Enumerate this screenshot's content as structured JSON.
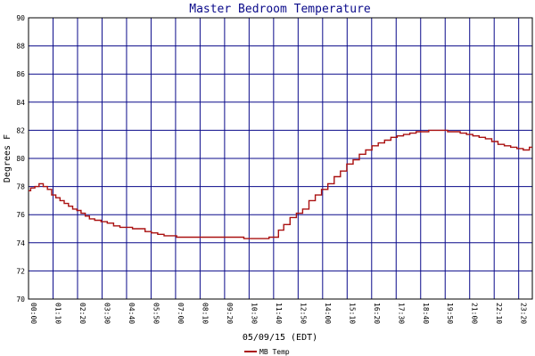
{
  "chart_data": {
    "type": "line",
    "title": "Master Bedroom Temperature",
    "xlabel": "05/09/15 (EDT)",
    "ylabel": "Degrees F",
    "ylim": [
      70,
      90
    ],
    "yticks": [
      70,
      72,
      74,
      76,
      78,
      80,
      82,
      84,
      86,
      88,
      90
    ],
    "xticks": [
      "00:00",
      "01:10",
      "02:20",
      "03:30",
      "04:40",
      "05:50",
      "07:00",
      "08:10",
      "09:20",
      "10:30",
      "11:40",
      "12:50",
      "14:00",
      "15:10",
      "16:20",
      "17:30",
      "18:40",
      "19:50",
      "21:00",
      "22:10",
      "23:20",
      "23:59"
    ],
    "xlim_hours": [
      0,
      23.983
    ],
    "grid": true,
    "legend_position": "bottom-left",
    "colors": {
      "series": "#aa1111",
      "grid": "#0a0a8a",
      "title": "#0a0a8a"
    },
    "series": [
      {
        "name": "MB Temp",
        "x": [
          0.0,
          0.2,
          0.4,
          0.6,
          0.8,
          1.0,
          1.2,
          1.4,
          1.6,
          1.8,
          2.0,
          2.2,
          2.4,
          2.6,
          2.8,
          3.0,
          3.3,
          3.6,
          3.9,
          4.2,
          4.5,
          4.8,
          5.1,
          5.4,
          5.7,
          6.0,
          6.3,
          6.6,
          6.9,
          7.2,
          7.5,
          7.8,
          8.1,
          8.4,
          8.7,
          9.0,
          9.5,
          10.0,
          10.5,
          11.0,
          11.3,
          11.6,
          11.8,
          12.0,
          12.3,
          12.6,
          12.9,
          13.2,
          13.5,
          13.8,
          14.1,
          14.4,
          14.7,
          15.0,
          15.3,
          15.6,
          15.9,
          16.2,
          16.5,
          16.8,
          17.1,
          17.4,
          17.7,
          18.0,
          18.3,
          18.6,
          18.9,
          19.2,
          19.5,
          19.8,
          20.1,
          20.4,
          20.7,
          21.0,
          21.3,
          21.6,
          21.9,
          22.2,
          22.5,
          22.8,
          23.1,
          23.4,
          23.7,
          23.983
        ],
        "values": [
          77.7,
          77.9,
          78.0,
          78.2,
          78.0,
          77.8,
          77.4,
          77.2,
          77.0,
          76.8,
          76.6,
          76.4,
          76.3,
          76.1,
          75.9,
          75.7,
          75.6,
          75.5,
          75.4,
          75.2,
          75.1,
          75.1,
          75.0,
          75.0,
          74.8,
          74.7,
          74.6,
          74.5,
          74.5,
          74.4,
          74.4,
          74.4,
          74.4,
          74.4,
          74.4,
          74.4,
          74.4,
          74.4,
          74.3,
          74.3,
          74.3,
          74.4,
          74.4,
          74.9,
          75.3,
          75.8,
          76.1,
          76.4,
          77.0,
          77.4,
          77.8,
          78.2,
          78.7,
          79.1,
          79.6,
          79.9,
          80.3,
          80.6,
          80.9,
          81.1,
          81.3,
          81.5,
          81.6,
          81.7,
          81.8,
          81.9,
          81.9,
          82.0,
          82.0,
          82.0,
          81.9,
          81.9,
          81.8,
          81.7,
          81.6,
          81.5,
          81.4,
          81.2,
          81.0,
          80.9,
          80.8,
          80.7,
          80.6,
          80.8
        ]
      }
    ]
  }
}
